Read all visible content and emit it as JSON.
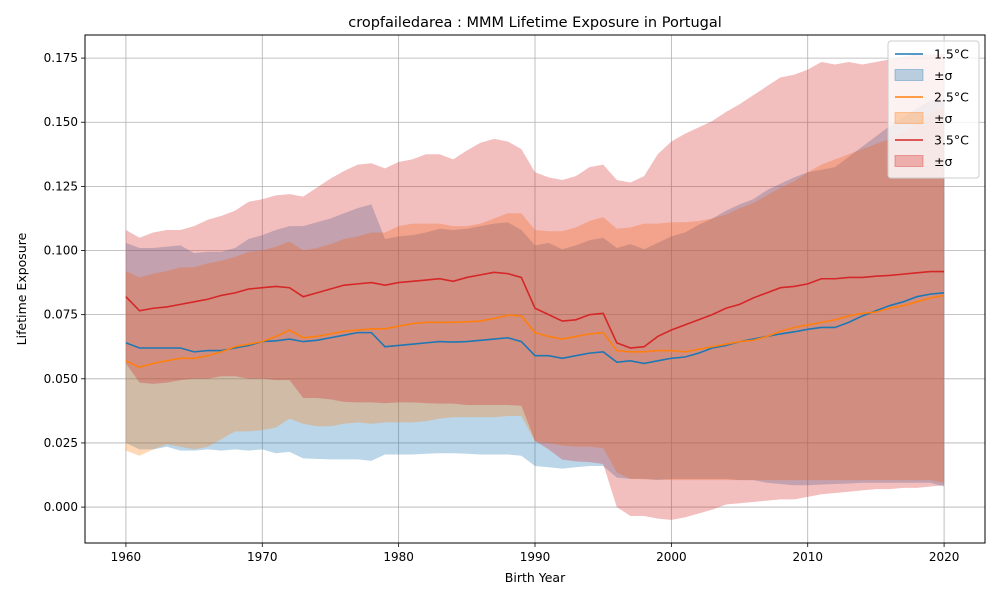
{
  "chart_data": {
    "type": "line",
    "title": "cropfailedarea : MMM Lifetime Exposure in Portugal",
    "xlabel": "Birth Year",
    "ylabel": "Lifetime Exposure",
    "xlim": [
      1957,
      2023
    ],
    "ylim": [
      -0.014,
      0.184
    ],
    "xticks": [
      1960,
      1970,
      1980,
      1990,
      2000,
      2010,
      2020
    ],
    "xtick_labels": [
      "1960",
      "1970",
      "1980",
      "1990",
      "2000",
      "2010",
      "2020"
    ],
    "yticks": [
      0.0,
      0.025,
      0.05,
      0.075,
      0.1,
      0.125,
      0.15,
      0.175
    ],
    "ytick_labels": [
      "0.000",
      "0.025",
      "0.050",
      "0.075",
      "0.100",
      "0.125",
      "0.150",
      "0.175"
    ],
    "grid": true,
    "legend_position": "top-right",
    "legend_entries": [
      "1.5°C",
      "±σ",
      "2.5°C",
      "±σ",
      "3.5°C",
      "±σ"
    ],
    "x": [
      1960,
      1961,
      1962,
      1963,
      1964,
      1965,
      1966,
      1967,
      1968,
      1969,
      1970,
      1971,
      1972,
      1973,
      1974,
      1975,
      1976,
      1977,
      1978,
      1979,
      1980,
      1981,
      1982,
      1983,
      1984,
      1985,
      1986,
      1987,
      1988,
      1989,
      1990,
      1991,
      1992,
      1993,
      1994,
      1995,
      1996,
      1997,
      1998,
      1999,
      2000,
      2001,
      2002,
      2003,
      2004,
      2005,
      2006,
      2007,
      2008,
      2009,
      2010,
      2011,
      2012,
      2013,
      2014,
      2015,
      2016,
      2017,
      2018,
      2019,
      2020
    ],
    "series": [
      {
        "name": "1.5°C",
        "color": "#1f77b4",
        "band_color": "#1f77b4",
        "mean": [
          0.064,
          0.062,
          0.062,
          0.062,
          0.062,
          0.0605,
          0.061,
          0.061,
          0.062,
          0.063,
          0.0645,
          0.0648,
          0.0655,
          0.0645,
          0.065,
          0.066,
          0.067,
          0.068,
          0.068,
          0.0625,
          0.063,
          0.0635,
          0.064,
          0.0645,
          0.0643,
          0.0645,
          0.065,
          0.0655,
          0.066,
          0.0645,
          0.059,
          0.059,
          0.058,
          0.059,
          0.06,
          0.0605,
          0.0565,
          0.057,
          0.056,
          0.057,
          0.058,
          0.0585,
          0.06,
          0.062,
          0.063,
          0.0645,
          0.0655,
          0.0665,
          0.0675,
          0.0683,
          0.0693,
          0.07,
          0.07,
          0.072,
          0.0745,
          0.0765,
          0.0785,
          0.08,
          0.082,
          0.083,
          0.0835
        ],
        "upper": [
          0.103,
          0.101,
          0.101,
          0.1015,
          0.102,
          0.099,
          0.0995,
          0.0995,
          0.101,
          0.1045,
          0.106,
          0.108,
          0.1095,
          0.1095,
          0.111,
          0.1125,
          0.1145,
          0.1165,
          0.118,
          0.1045,
          0.1055,
          0.106,
          0.107,
          0.1085,
          0.108,
          0.1085,
          0.1095,
          0.1105,
          0.111,
          0.108,
          0.102,
          0.103,
          0.1005,
          0.102,
          0.104,
          0.105,
          0.101,
          0.1025,
          0.1005,
          0.103,
          0.1055,
          0.107,
          0.11,
          0.1125,
          0.1155,
          0.118,
          0.12,
          0.1235,
          0.126,
          0.1285,
          0.1305,
          0.1315,
          0.1325,
          0.1365,
          0.1405,
          0.1445,
          0.1485,
          0.152,
          0.1555,
          0.1585,
          0.159
        ],
        "lower": [
          0.025,
          0.0225,
          0.0225,
          0.0235,
          0.022,
          0.022,
          0.0225,
          0.022,
          0.0225,
          0.022,
          0.0225,
          0.021,
          0.0215,
          0.019,
          0.0188,
          0.0186,
          0.0186,
          0.0186,
          0.018,
          0.0205,
          0.0205,
          0.0205,
          0.0208,
          0.021,
          0.021,
          0.0208,
          0.0205,
          0.0205,
          0.0205,
          0.02,
          0.016,
          0.0155,
          0.015,
          0.0155,
          0.016,
          0.016,
          0.0115,
          0.011,
          0.011,
          0.0105,
          0.011,
          0.011,
          0.011,
          0.011,
          0.011,
          0.0105,
          0.0105,
          0.0095,
          0.009,
          0.0085,
          0.0085,
          0.0088,
          0.009,
          0.0092,
          0.0095,
          0.0095,
          0.0095,
          0.0095,
          0.0095,
          0.0095,
          0.008
        ]
      },
      {
        "name": "2.5°C",
        "color": "#ff7f0e",
        "band_color": "#ff7f0e",
        "mean": [
          0.057,
          0.0545,
          0.056,
          0.057,
          0.058,
          0.058,
          0.059,
          0.0605,
          0.0625,
          0.0635,
          0.0645,
          0.0665,
          0.069,
          0.066,
          0.0665,
          0.0675,
          0.0685,
          0.069,
          0.0695,
          0.0695,
          0.0705,
          0.0715,
          0.072,
          0.072,
          0.072,
          0.0722,
          0.0725,
          0.0735,
          0.0748,
          0.0745,
          0.068,
          0.0665,
          0.0655,
          0.0665,
          0.0675,
          0.068,
          0.061,
          0.0605,
          0.0605,
          0.061,
          0.061,
          0.0605,
          0.0615,
          0.0625,
          0.0635,
          0.0645,
          0.065,
          0.0665,
          0.0685,
          0.07,
          0.071,
          0.072,
          0.073,
          0.0745,
          0.0755,
          0.076,
          0.0775,
          0.0785,
          0.08,
          0.0815,
          0.0825
        ],
        "upper": [
          0.092,
          0.0895,
          0.091,
          0.092,
          0.0935,
          0.0935,
          0.095,
          0.096,
          0.0975,
          0.0995,
          0.1,
          0.1015,
          0.1035,
          0.1,
          0.101,
          0.1025,
          0.1045,
          0.1055,
          0.107,
          0.107,
          0.1095,
          0.1105,
          0.1105,
          0.1105,
          0.1095,
          0.1095,
          0.1105,
          0.1125,
          0.1145,
          0.1145,
          0.108,
          0.1075,
          0.1075,
          0.109,
          0.1115,
          0.113,
          0.1085,
          0.109,
          0.1105,
          0.1105,
          0.111,
          0.111,
          0.1115,
          0.1125,
          0.114,
          0.1165,
          0.1185,
          0.1215,
          0.1245,
          0.127,
          0.1305,
          0.1335,
          0.1355,
          0.1375,
          0.1395,
          0.1415,
          0.1435,
          0.146,
          0.15,
          0.1535,
          0.1555
        ],
        "lower": [
          0.022,
          0.02,
          0.0225,
          0.0245,
          0.0235,
          0.0225,
          0.0235,
          0.0265,
          0.0295,
          0.0295,
          0.03,
          0.031,
          0.0345,
          0.0325,
          0.0315,
          0.0315,
          0.0325,
          0.033,
          0.0325,
          0.033,
          0.033,
          0.033,
          0.0335,
          0.0345,
          0.035,
          0.035,
          0.035,
          0.035,
          0.0355,
          0.0355,
          0.0255,
          0.025,
          0.024,
          0.0235,
          0.0235,
          0.023,
          0.0135,
          0.011,
          0.0108,
          0.0108,
          0.0105,
          0.0105,
          0.0105,
          0.0105,
          0.0105,
          0.0105,
          0.0105,
          0.0105,
          0.0105,
          0.0105,
          0.0105,
          0.0105,
          0.0105,
          0.0105,
          0.0105,
          0.0105,
          0.0105,
          0.0105,
          0.0105,
          0.0105,
          0.0095
        ]
      },
      {
        "name": "3.5°C",
        "color": "#d62728",
        "band_color": "#d62728",
        "mean": [
          0.082,
          0.0765,
          0.0775,
          0.078,
          0.079,
          0.08,
          0.081,
          0.0825,
          0.0835,
          0.085,
          0.0855,
          0.086,
          0.0855,
          0.082,
          0.0835,
          0.085,
          0.0865,
          0.087,
          0.0875,
          0.0865,
          0.0875,
          0.088,
          0.0885,
          0.089,
          0.088,
          0.0895,
          0.0905,
          0.0915,
          0.091,
          0.0895,
          0.0775,
          0.075,
          0.0725,
          0.073,
          0.075,
          0.0755,
          0.064,
          0.062,
          0.0625,
          0.0665,
          0.069,
          0.071,
          0.073,
          0.075,
          0.0775,
          0.079,
          0.0815,
          0.0835,
          0.0855,
          0.086,
          0.087,
          0.089,
          0.089,
          0.0895,
          0.0895,
          0.09,
          0.0903,
          0.0908,
          0.0913,
          0.0918,
          0.0918
        ],
        "upper": [
          0.108,
          0.105,
          0.107,
          0.108,
          0.108,
          0.1095,
          0.112,
          0.1135,
          0.1155,
          0.119,
          0.12,
          0.1215,
          0.122,
          0.121,
          0.1245,
          0.128,
          0.131,
          0.1335,
          0.134,
          0.132,
          0.1345,
          0.1355,
          0.1375,
          0.1375,
          0.1355,
          0.139,
          0.142,
          0.1435,
          0.1425,
          0.1395,
          0.1305,
          0.1285,
          0.1275,
          0.129,
          0.1325,
          0.1335,
          0.1275,
          0.1265,
          0.129,
          0.1375,
          0.1425,
          0.1455,
          0.148,
          0.1505,
          0.154,
          0.157,
          0.1605,
          0.164,
          0.1675,
          0.1685,
          0.1705,
          0.1735,
          0.1725,
          0.1735,
          0.1725,
          0.1735,
          0.1745,
          0.1755,
          0.1765,
          0.1765,
          0.1765
        ],
        "lower": [
          0.056,
          0.0485,
          0.048,
          0.0485,
          0.0495,
          0.05,
          0.05,
          0.051,
          0.051,
          0.05,
          0.05,
          0.0495,
          0.0495,
          0.0425,
          0.0425,
          0.042,
          0.041,
          0.0408,
          0.0408,
          0.0405,
          0.0408,
          0.0408,
          0.0405,
          0.0403,
          0.0403,
          0.0398,
          0.0398,
          0.0398,
          0.0398,
          0.0395,
          0.0258,
          0.0225,
          0.0185,
          0.0178,
          0.0175,
          0.0168,
          0.0,
          -0.0035,
          -0.0035,
          -0.0045,
          -0.005,
          -0.004,
          -0.0025,
          -0.001,
          0.001,
          0.0015,
          0.002,
          0.0025,
          0.003,
          0.003,
          0.004,
          0.005,
          0.0055,
          0.006,
          0.0065,
          0.007,
          0.007,
          0.0075,
          0.0075,
          0.008,
          0.0085
        ]
      }
    ]
  }
}
